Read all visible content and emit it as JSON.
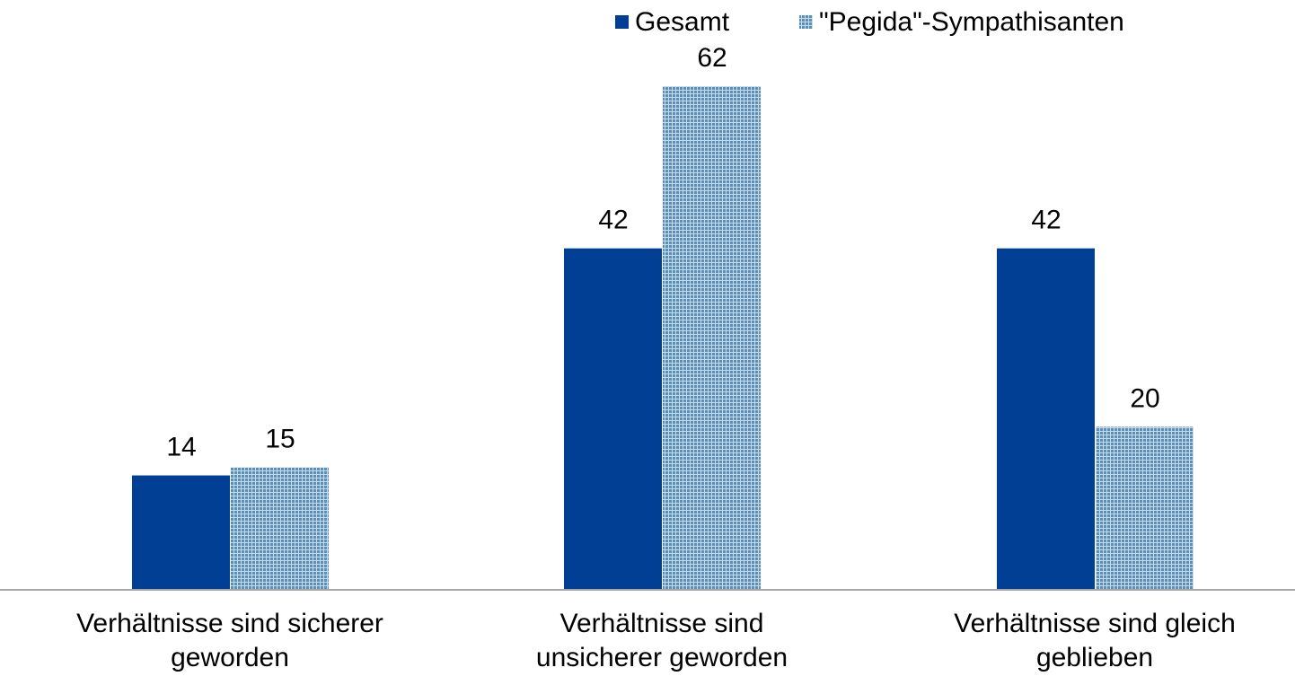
{
  "chart_data": {
    "type": "bar",
    "categories": [
      "Verhältnisse sind sicherer geworden",
      "Verhältnisse sind unsicherer geworden",
      "Verhältnisse sind gleich geblieben"
    ],
    "series": [
      {
        "name": "Gesamt",
        "color": "#003f94",
        "values": [
          14,
          42,
          42
        ]
      },
      {
        "name": "\"Pegida\"-Sympathisanten",
        "color": "#5a8fb8",
        "pattern": "grid",
        "values": [
          15,
          62,
          20
        ]
      }
    ],
    "legend": "top"
  }
}
